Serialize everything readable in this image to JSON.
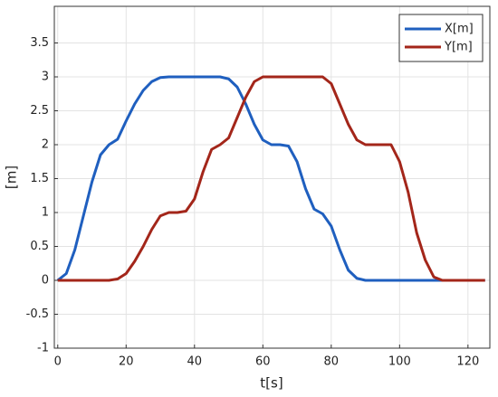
{
  "chart_data": {
    "type": "line",
    "x_label": "t[s]",
    "y_label": "[m]",
    "x": [
      0,
      2.5,
      5,
      7.5,
      10,
      12.5,
      15,
      17.5,
      20,
      22.5,
      25,
      27.5,
      30,
      32.5,
      35,
      37.5,
      40,
      42.5,
      45,
      47.5,
      50,
      52.5,
      55,
      57.5,
      60,
      62.5,
      65,
      67.5,
      70,
      72.5,
      75,
      77.5,
      80,
      82.5,
      85,
      87.5,
      90,
      92.5,
      95,
      97.5,
      100,
      102.5,
      105,
      107.5,
      110,
      112.5,
      115,
      117.5,
      120,
      122.5,
      125
    ],
    "series": [
      {
        "name": "X[m]",
        "color": "#1f5fbf",
        "values": [
          0,
          0.1,
          0.45,
          0.95,
          1.45,
          1.85,
          2.0,
          2.08,
          2.35,
          2.6,
          2.8,
          2.93,
          2.99,
          3,
          3,
          3,
          3,
          3,
          3,
          3,
          2.97,
          2.85,
          2.6,
          2.3,
          2.07,
          2.0,
          2.0,
          1.98,
          1.75,
          1.35,
          1.05,
          0.98,
          0.8,
          0.45,
          0.15,
          0.03,
          0,
          0,
          0,
          0,
          0,
          0,
          0,
          0,
          0,
          0,
          0,
          0,
          0,
          0,
          0
        ]
      },
      {
        "name": "Y[m]",
        "color": "#a3261a",
        "values": [
          0,
          0,
          0,
          0,
          0,
          0,
          0,
          0.02,
          0.1,
          0.28,
          0.5,
          0.75,
          0.95,
          1.0,
          1.0,
          1.02,
          1.2,
          1.6,
          1.93,
          2.0,
          2.1,
          2.4,
          2.7,
          2.93,
          3.0,
          3.0,
          3.0,
          3.0,
          3.0,
          3.0,
          3.0,
          3.0,
          2.9,
          2.6,
          2.3,
          2.07,
          2.0,
          2.0,
          2.0,
          2.0,
          1.75,
          1.3,
          0.7,
          0.3,
          0.05,
          0,
          0,
          0,
          0,
          0,
          0
        ]
      }
    ],
    "xlim": [
      -1,
      126.4
    ],
    "ylim": [
      -1,
      4.04
    ],
    "xticks": [
      0,
      20,
      40,
      60,
      80,
      100,
      120
    ],
    "yticks": [
      -1,
      -0.5,
      0,
      0.5,
      1,
      1.5,
      2,
      2.5,
      3,
      3.5
    ],
    "grid": true,
    "legend": "upper right"
  }
}
